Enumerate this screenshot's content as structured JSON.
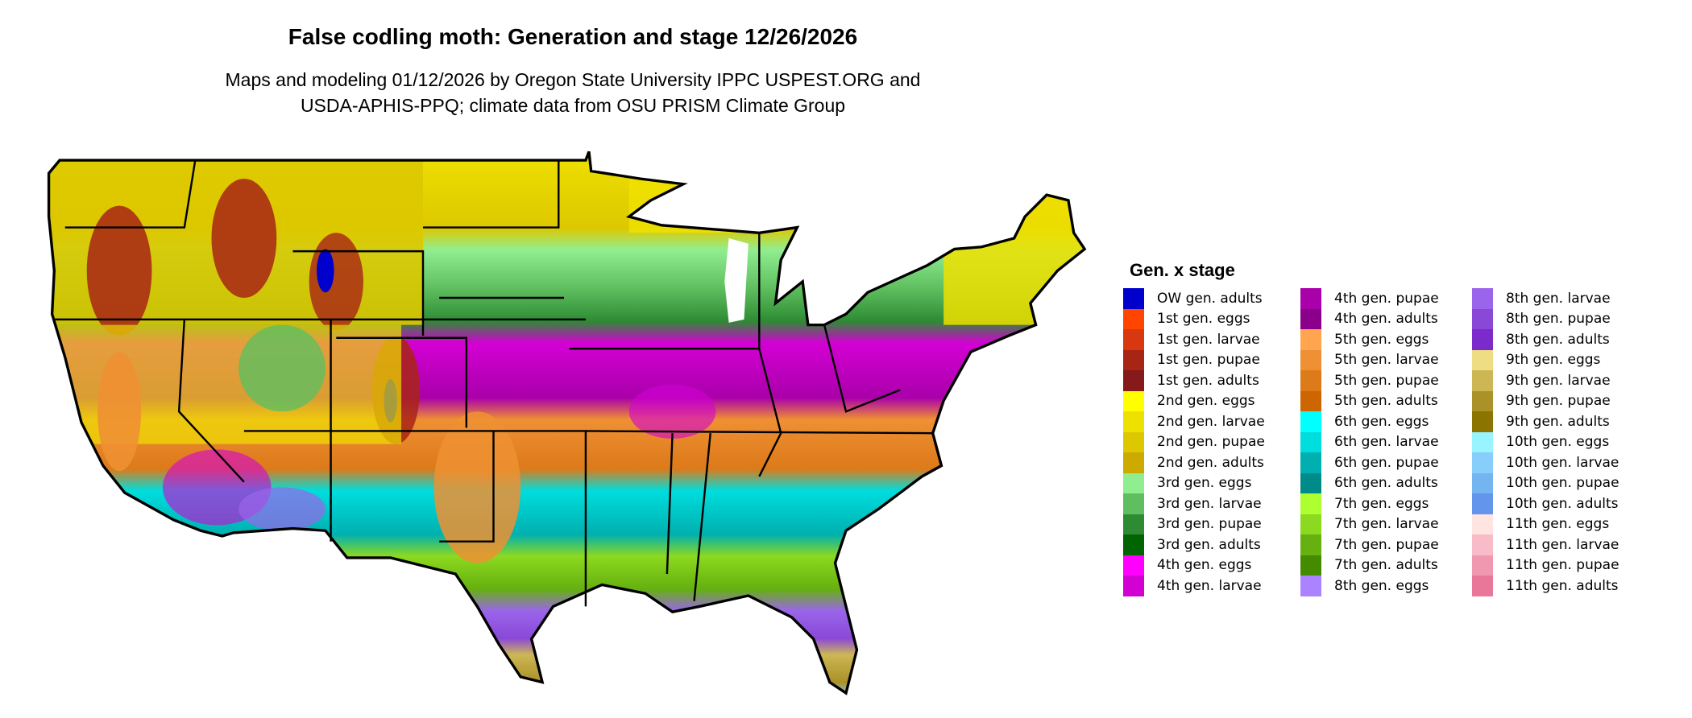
{
  "title": "False codling moth: Generation and stage 12/26/2026",
  "subtitle_line1": "Maps and modeling 01/12/2026 by Oregon State University IPPC USPEST.ORG and",
  "subtitle_line2": "USDA-APHIS-PPQ; climate data from OSU PRISM Climate Group",
  "legend": {
    "title": "Gen. x stage",
    "items": [
      {
        "label": "OW gen. adults",
        "color": "#0000CD"
      },
      {
        "label": "1st gen. eggs",
        "color": "#FF4500"
      },
      {
        "label": "1st gen. larvae",
        "color": "#D7380F"
      },
      {
        "label": "1st gen. pupae",
        "color": "#A82415"
      },
      {
        "label": "1st gen. adults",
        "color": "#861A1A"
      },
      {
        "label": "2nd gen. eggs",
        "color": "#FFFF00"
      },
      {
        "label": "2nd gen. larvae",
        "color": "#EEE000"
      },
      {
        "label": "2nd gen. pupae",
        "color": "#DDC800"
      },
      {
        "label": "2nd gen. adults",
        "color": "#CCAA00"
      },
      {
        "label": "3rd gen. eggs",
        "color": "#90EE90"
      },
      {
        "label": "3rd gen. larvae",
        "color": "#5FBF5F"
      },
      {
        "label": "3rd gen. pupae",
        "color": "#2E8B34"
      },
      {
        "label": "3rd gen. adults",
        "color": "#006400"
      },
      {
        "label": "4th gen. eggs",
        "color": "#FF00FF"
      },
      {
        "label": "4th gen. larvae",
        "color": "#D300D3"
      },
      {
        "label": "4th gen. pupae",
        "color": "#AA00AA"
      },
      {
        "label": "4th gen. adults",
        "color": "#8B008B"
      },
      {
        "label": "5th gen. eggs",
        "color": "#FFA54F"
      },
      {
        "label": "5th gen. larvae",
        "color": "#EE9033"
      },
      {
        "label": "5th gen. pupae",
        "color": "#DD7A1A"
      },
      {
        "label": "5th gen. adults",
        "color": "#CD6600"
      },
      {
        "label": "6th gen. eggs",
        "color": "#00FFFF"
      },
      {
        "label": "6th gen. larvae",
        "color": "#00DDDD"
      },
      {
        "label": "6th gen. pupae",
        "color": "#00B0B0"
      },
      {
        "label": "6th gen. adults",
        "color": "#008B8B"
      },
      {
        "label": "7th gen. eggs",
        "color": "#ADFF2F"
      },
      {
        "label": "7th gen. larvae",
        "color": "#8CD91F"
      },
      {
        "label": "7th gen. pupae",
        "color": "#66B010"
      },
      {
        "label": "7th gen. adults",
        "color": "#458B00"
      },
      {
        "label": "8th gen. eggs",
        "color": "#AB82FF"
      },
      {
        "label": "8th gen. larvae",
        "color": "#9A65EA"
      },
      {
        "label": "8th gen. pupae",
        "color": "#8A48D8"
      },
      {
        "label": "8th gen. adults",
        "color": "#7B2BCB"
      },
      {
        "label": "9th gen. eggs",
        "color": "#EEDD82"
      },
      {
        "label": "9th gen. larvae",
        "color": "#CDB755"
      },
      {
        "label": "9th gen. pupae",
        "color": "#AA9128"
      },
      {
        "label": "9th gen. adults",
        "color": "#8B7500"
      },
      {
        "label": "10th gen. eggs",
        "color": "#98F5FF"
      },
      {
        "label": "10th gen. larvae",
        "color": "#87CEFA"
      },
      {
        "label": "10th gen. pupae",
        "color": "#74B4F0"
      },
      {
        "label": "10th gen. adults",
        "color": "#6495ED"
      },
      {
        "label": "11th gen. eggs",
        "color": "#FFE4E1"
      },
      {
        "label": "11th gen. larvae",
        "color": "#F8BBC8"
      },
      {
        "label": "11th gen. pupae",
        "color": "#F098B0"
      },
      {
        "label": "11th gen. adults",
        "color": "#E8779A"
      }
    ]
  }
}
